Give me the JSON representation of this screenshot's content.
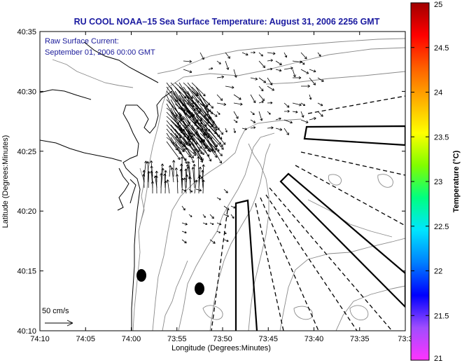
{
  "title": "RU COOL  NOAA–15  Sea Surface Temperature:  August 31, 2006 2256 GMT",
  "annotation": {
    "line1": "Raw Surface Current:",
    "line2": "September 01, 2006 00:00 GMT"
  },
  "scale": {
    "label": "50 cm/s"
  },
  "xlabel": "Longitude (Degrees:Minutes)",
  "ylabel": "Latitude (Degrees:Minutes)",
  "xticks": [
    "74:10",
    "74:05",
    "74:00",
    "73:55",
    "73:50",
    "73:45",
    "73:40",
    "73:35",
    "73:3"
  ],
  "yticks": [
    "40:35",
    "40:30",
    "40:25",
    "40:20",
    "40:15",
    "40:10"
  ],
  "colorbar": {
    "label": "Temperature (°C)",
    "ticks": [
      "25",
      "24.5",
      "24",
      "23.5",
      "23",
      "22.5",
      "22",
      "21.5",
      "21"
    ],
    "range": [
      21,
      25
    ],
    "colors": [
      "#ff33ff",
      "#a04dff",
      "#0000ff",
      "#0080ff",
      "#00e5ff",
      "#00ff80",
      "#80ff00",
      "#ffff00",
      "#ffb000",
      "#ff6000",
      "#ff0000",
      "#a00000"
    ]
  },
  "chart_data": {
    "type": "map",
    "title": "RU COOL  NOAA–15  Sea Surface Temperature:  August 31, 2006 2256 GMT",
    "xlabel": "Longitude (Degrees:Minutes)",
    "ylabel": "Latitude (Degrees:Minutes)",
    "x_range_minutes_west": [
      610,
      570
    ],
    "y_range_minutes_north": [
      2410,
      2435
    ],
    "vector_scale": "50 cm/s",
    "markers": [
      {
        "type": "filled-ellipse",
        "lon": "73:58.9",
        "lat": "40:14.8"
      },
      {
        "type": "filled-ellipse",
        "lon": "73:52.2",
        "lat": "40:13.6"
      }
    ]
  }
}
